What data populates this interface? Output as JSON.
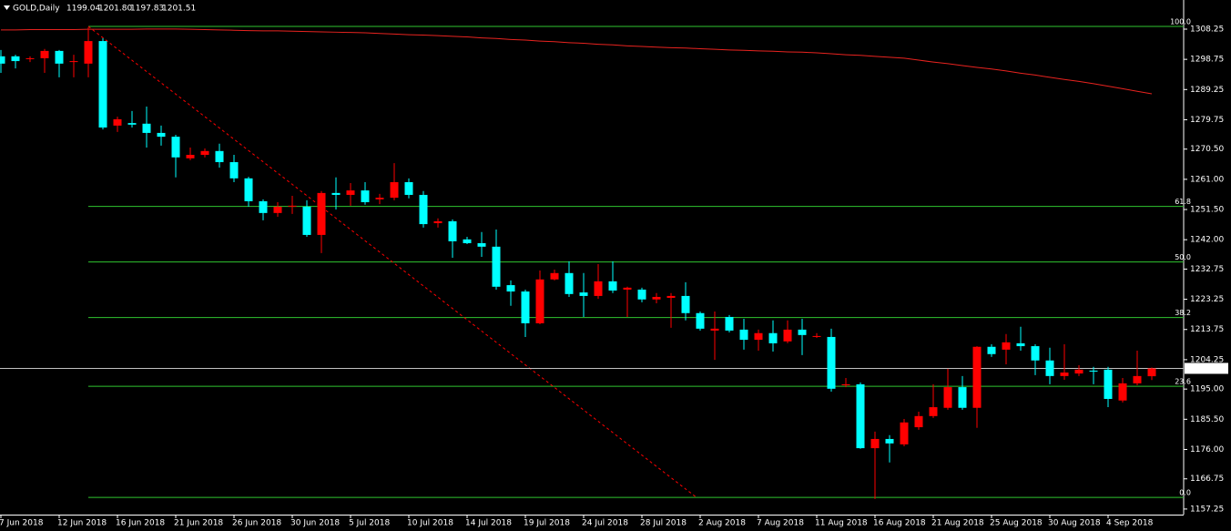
{
  "chart_data": {
    "type": "candlestick",
    "title": "GOLD,Daily",
    "quote": [
      "1199.04",
      "1201.80",
      "1197.83",
      "1201.51"
    ],
    "categories": [
      "7 Jun 2018",
      null,
      null,
      null,
      "12 Jun 2018",
      null,
      null,
      null,
      "16 Jun 2018",
      null,
      null,
      null,
      "21 Jun 2018",
      null,
      null,
      null,
      "26 Jun 2018",
      null,
      null,
      null,
      "30 Jun 2018",
      null,
      null,
      null,
      "5 Jul 2018",
      null,
      null,
      null,
      "10 Jul 2018",
      null,
      null,
      null,
      "14 Jul 2018",
      null,
      null,
      null,
      "19 Jul 2018",
      null,
      null,
      null,
      "24 Jul 2018",
      null,
      null,
      null,
      "28 Jul 2018",
      null,
      null,
      null,
      "2 Aug 2018",
      null,
      null,
      null,
      "7 Aug 2018",
      null,
      null,
      null,
      "11 Aug 2018",
      null,
      null,
      null,
      "16 Aug 2018",
      null,
      null,
      null,
      "21 Aug 2018",
      null,
      null,
      null,
      "25 Aug 2018",
      null,
      null,
      null,
      "30 Aug 2018",
      null,
      null,
      null,
      "4 Sep 2018",
      null,
      null,
      null
    ],
    "open": [
      1299.7,
      1299.7,
      1298.9,
      1299.1,
      1301.4,
      1297.9,
      1297.4,
      1304.5,
      1277.9,
      1278.7,
      1278.5,
      1275.6,
      1274.4,
      1267.6,
      1268.7,
      1269.9,
      1266.4,
      1261.3,
      1254.1,
      1250.4,
      1252.4,
      1252.4,
      1243.5,
      1256.7,
      1256.1,
      1257.5,
      1254.7,
      1255.2,
      1260.1,
      1256.1,
      1247.2,
      1247.8,
      1242.1,
      1240.9,
      1239.8,
      1227.7,
      1225.7,
      1215.7,
      1229.5,
      1231.5,
      1225.4,
      1224.3,
      1228.9,
      1226.3,
      1226.3,
      1223.2,
      1223.7,
      1224.3,
      1218.9,
      1213.4,
      1217.7,
      1213.7,
      1210.5,
      1212.6,
      1210.0,
      1213.7,
      1211.4,
      1211.4,
      1196.2,
      1196.5,
      1176.4,
      1179.3,
      1177.6,
      1183.0,
      1186.5,
      1189.1,
      1195.6,
      1189.1,
      1208.3,
      1207.4,
      1209.4,
      1208.5,
      1204.0,
      1199.1,
      1199.9,
      1200.8,
      1201.1,
      1191.4,
      1196.8,
      1199.04
    ],
    "high": [
      1301.7,
      1300.2,
      1299.7,
      1302.0,
      1301.7,
      1300.2,
      1308.8,
      1305.4,
      1280.7,
      1282.5,
      1283.9,
      1277.9,
      1275.0,
      1271.0,
      1270.7,
      1272.2,
      1268.7,
      1261.8,
      1254.7,
      1253.8,
      1255.8,
      1254.4,
      1257.3,
      1261.6,
      1259.8,
      1260.1,
      1256.4,
      1266.1,
      1261.3,
      1257.3,
      1248.7,
      1248.4,
      1242.9,
      1244.4,
      1245.2,
      1229.2,
      1226.3,
      1232.3,
      1232.6,
      1235.2,
      1231.5,
      1234.3,
      1235.2,
      1227.2,
      1226.9,
      1225.2,
      1225.2,
      1228.6,
      1219.4,
      1219.4,
      1218.3,
      1217.1,
      1213.7,
      1216.6,
      1216.6,
      1217.1,
      1212.6,
      1214.0,
      1198.5,
      1197.1,
      1181.6,
      1180.5,
      1185.6,
      1187.9,
      1196.5,
      1201.4,
      1199.1,
      1208.5,
      1209.1,
      1212.3,
      1214.6,
      1209.1,
      1208.0,
      1209.1,
      1202.5,
      1202.0,
      1202.0,
      1198.5,
      1207.1,
      1201.8
    ],
    "low": [
      1294.5,
      1295.9,
      1297.9,
      1294.5,
      1293.1,
      1293.1,
      1293.1,
      1276.7,
      1275.9,
      1277.3,
      1271.0,
      1271.6,
      1261.6,
      1267.0,
      1267.9,
      1264.7,
      1260.1,
      1252.4,
      1248.1,
      1249.2,
      1250.1,
      1242.9,
      1237.8,
      1251.5,
      1252.7,
      1253.0,
      1253.2,
      1254.4,
      1255.0,
      1245.8,
      1245.8,
      1236.3,
      1240.6,
      1236.6,
      1226.3,
      1221.2,
      1211.4,
      1215.4,
      1229.2,
      1224.0,
      1217.7,
      1223.4,
      1225.2,
      1217.7,
      1222.3,
      1222.0,
      1214.3,
      1216.6,
      1213.4,
      1204.2,
      1212.8,
      1207.4,
      1207.1,
      1206.8,
      1209.4,
      1205.7,
      1211.1,
      1194.2,
      1195.6,
      1176.2,
      1160.4,
      1171.9,
      1177.0,
      1182.2,
      1185.9,
      1188.5,
      1188.5,
      1182.8,
      1205.1,
      1202.8,
      1207.1,
      1199.4,
      1196.5,
      1197.9,
      1199.1,
      1196.5,
      1189.3,
      1190.8,
      1196.2,
      1197.83
    ],
    "close": [
      1297.4,
      1298.2,
      1299.1,
      1301.4,
      1297.4,
      1298.2,
      1304.5,
      1277.3,
      1279.9,
      1278.2,
      1275.6,
      1274.4,
      1267.9,
      1268.7,
      1269.9,
      1266.4,
      1261.3,
      1254.1,
      1250.4,
      1252.4,
      1252.7,
      1243.5,
      1256.7,
      1256.1,
      1257.5,
      1253.8,
      1255.2,
      1260.1,
      1256.1,
      1246.9,
      1247.8,
      1241.5,
      1240.9,
      1239.8,
      1227.2,
      1225.7,
      1215.7,
      1229.5,
      1231.5,
      1224.9,
      1224.3,
      1228.9,
      1226.0,
      1226.9,
      1223.2,
      1224.0,
      1224.3,
      1218.9,
      1214.0,
      1214.0,
      1213.4,
      1210.5,
      1212.6,
      1209.4,
      1213.7,
      1212.0,
      1211.7,
      1195.1,
      1196.5,
      1176.4,
      1179.3,
      1177.9,
      1184.5,
      1186.5,
      1189.3,
      1195.6,
      1189.1,
      1208.3,
      1206.0,
      1209.7,
      1208.5,
      1204.0,
      1199.1,
      1200.2,
      1201.1,
      1200.5,
      1191.9,
      1196.8,
      1199.1,
      1201.51
    ],
    "up_color": "#ff0000",
    "down_color": "#00ffff",
    "ma": {
      "color": "#e8231f",
      "values": [
        1308.0,
        1308.0,
        1308.1,
        1308.1,
        1308.1,
        1308.1,
        1308.2,
        1308.2,
        1308.2,
        1308.2,
        1308.3,
        1308.3,
        1308.3,
        1308.2,
        1308.1,
        1308.0,
        1307.9,
        1307.8,
        1307.7,
        1307.7,
        1307.6,
        1307.5,
        1307.4,
        1307.3,
        1307.2,
        1307.1,
        1306.9,
        1306.7,
        1306.5,
        1306.4,
        1306.2,
        1306.0,
        1305.8,
        1305.5,
        1305.3,
        1305.0,
        1304.8,
        1304.5,
        1304.3,
        1304.0,
        1303.8,
        1303.5,
        1303.3,
        1303.0,
        1302.8,
        1302.6,
        1302.4,
        1302.3,
        1302.1,
        1301.9,
        1301.7,
        1301.6,
        1301.4,
        1301.3,
        1301.1,
        1301.0,
        1300.8,
        1300.5,
        1300.2,
        1300.0,
        1299.7,
        1299.4,
        1299.1,
        1298.5,
        1297.9,
        1297.4,
        1296.8,
        1296.2,
        1295.7,
        1295.1,
        1294.4,
        1293.8,
        1293.1,
        1292.4,
        1291.8,
        1291.1,
        1290.3,
        1289.5,
        1288.7,
        1287.9
      ]
    },
    "fibo": {
      "high": 1309.1,
      "low": 1160.9,
      "color": "#2fc42f",
      "levels": [
        {
          "value": 100,
          "label": "100.0"
        },
        {
          "value": 61.8,
          "label": "61.8"
        },
        {
          "value": 50,
          "label": "50.0"
        },
        {
          "value": 38.2,
          "label": "38.2"
        },
        {
          "value": 23.6,
          "label": "23.6"
        },
        {
          "value": 0,
          "label": "0.0"
        }
      ]
    },
    "ylim": [
      1155.5,
      1317.42
    ],
    "yticks": [
      1157.25,
      1166.75,
      {
        "value": 1176,
        "label": "1176.00"
      },
      {
        "value": 1185.5,
        "label": "1185.50"
      },
      {
        "value": 1195,
        "label": "1195.00"
      },
      1204.25,
      1213.75,
      1223.25,
      1232.75,
      {
        "value": 1242,
        "label": "1242.00"
      },
      {
        "value": 1251.5,
        "label": "1251.50"
      },
      {
        "value": 1261,
        "label": "1261.00"
      },
      {
        "value": 1270.5,
        "label": "1270.50"
      },
      1279.75,
      1289.25,
      1298.75,
      1308.25
    ]
  }
}
